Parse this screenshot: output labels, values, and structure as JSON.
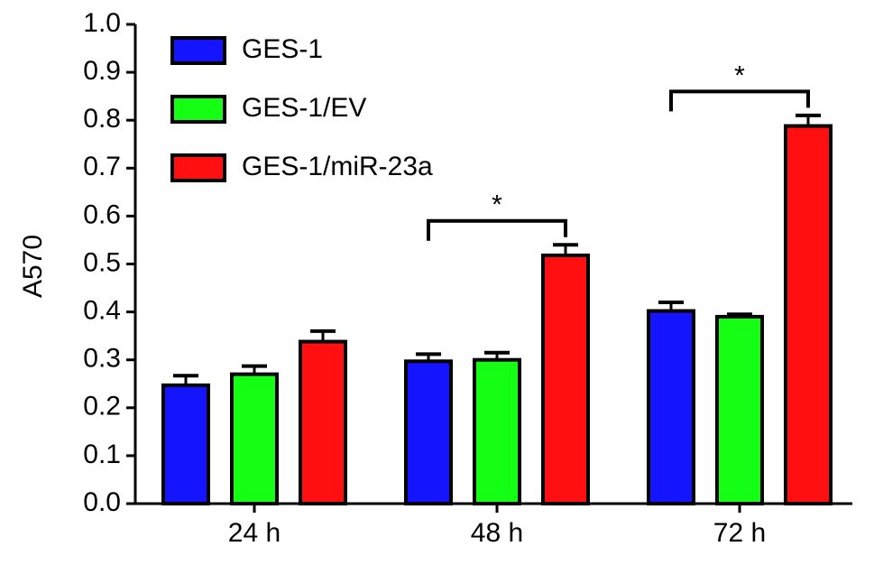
{
  "chart_data": {
    "type": "bar",
    "title": "",
    "xlabel": "",
    "ylabel": "A570",
    "ylim": [
      0,
      1.0
    ],
    "yticks": [
      "0.0",
      "0.1",
      "0.2",
      "0.3",
      "0.4",
      "0.5",
      "0.6",
      "0.7",
      "0.8",
      "0.9",
      "1.0"
    ],
    "categories": [
      "24 h",
      "48 h",
      "72 h"
    ],
    "series": [
      {
        "name": "GES-1",
        "color": "#1414ff",
        "values": [
          0.247,
          0.297,
          0.402
        ],
        "errors": [
          0.02,
          0.015,
          0.018
        ]
      },
      {
        "name": "GES-1/EV",
        "color": "#14ff14",
        "values": [
          0.27,
          0.3,
          0.39
        ],
        "errors": [
          0.017,
          0.015,
          0.005
        ]
      },
      {
        "name": "GES-1/miR-23a",
        "color": "#ff0f0f",
        "values": [
          0.338,
          0.518,
          0.788
        ],
        "errors": [
          0.022,
          0.022,
          0.022
        ]
      }
    ],
    "legend": {
      "position": "top-left"
    },
    "grid": false,
    "significance": [
      {
        "category": "48 h",
        "from_series": 0,
        "to_series": 2,
        "y": 0.59,
        "label": "*"
      },
      {
        "category": "72 h",
        "from_series": 0,
        "to_series": 2,
        "y": 0.86,
        "label": "*"
      }
    ]
  }
}
